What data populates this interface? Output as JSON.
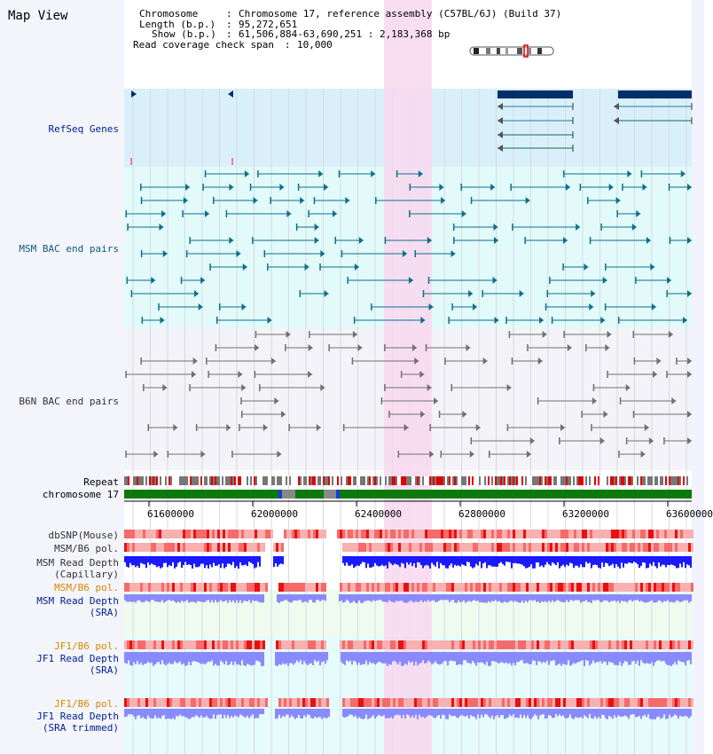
{
  "title": "Map View",
  "info": {
    "chromosome_key": "Chromosome",
    "chromosome_val": "Chromosome 17, reference assembly (C57BL/6J) (Build 37)",
    "length_key": "Length (b.p.)",
    "length_val": "95,272,651",
    "show_key": "Show (b.p.)",
    "show_val": "61,506,884-63,690,251 : 2,183,368 bp",
    "span_key": "Read coverage check span",
    "span_val": "10,000"
  },
  "tracks": {
    "refseq": "RefSeq Genes",
    "msm_bac": "MSM BAC end pairs",
    "b6n_bac": "B6N BAC end pairs",
    "repeat": "Repeat",
    "chromosome": "chromosome 17",
    "dbsnp": "dbSNP(Mouse)",
    "msm_b6_pol_1": "MSM/B6 pol.",
    "msm_depth_cap_1": "MSM Read Depth",
    "msm_depth_cap_2": "(Capillary)",
    "msm_b6_pol_2": "MSM/B6 pol.",
    "msm_depth_sra_1": "MSM Read Depth",
    "msm_depth_sra_2": "(SRA)",
    "jf1_pol_1": "JF1/B6 pol.",
    "jf1_depth_sra_1": "JF1 Read Depth",
    "jf1_depth_sra_2": "(SRA)",
    "jf1_pol_2": "JF1/B6 pol.",
    "jf1_depth_trim_1": "JF1 Read Depth",
    "jf1_depth_trim_2": "(SRA trimmed)"
  },
  "axis": {
    "ticks": [
      "61600000",
      "62000000",
      "62400000",
      "62800000",
      "63200000",
      "63600000"
    ]
  },
  "colors": {
    "refseq_bg": "#d9f0fa",
    "msm_bg": "#e2fafa",
    "b6n_bg": "#f3f3f8",
    "highlight": "#f8d8f0",
    "gene": "#00306a",
    "msm_feature": "#0f6e8c",
    "b6n_feature": "#707070",
    "depth_cap": "#1a1aff",
    "depth_sra": "#8a8aff"
  }
}
